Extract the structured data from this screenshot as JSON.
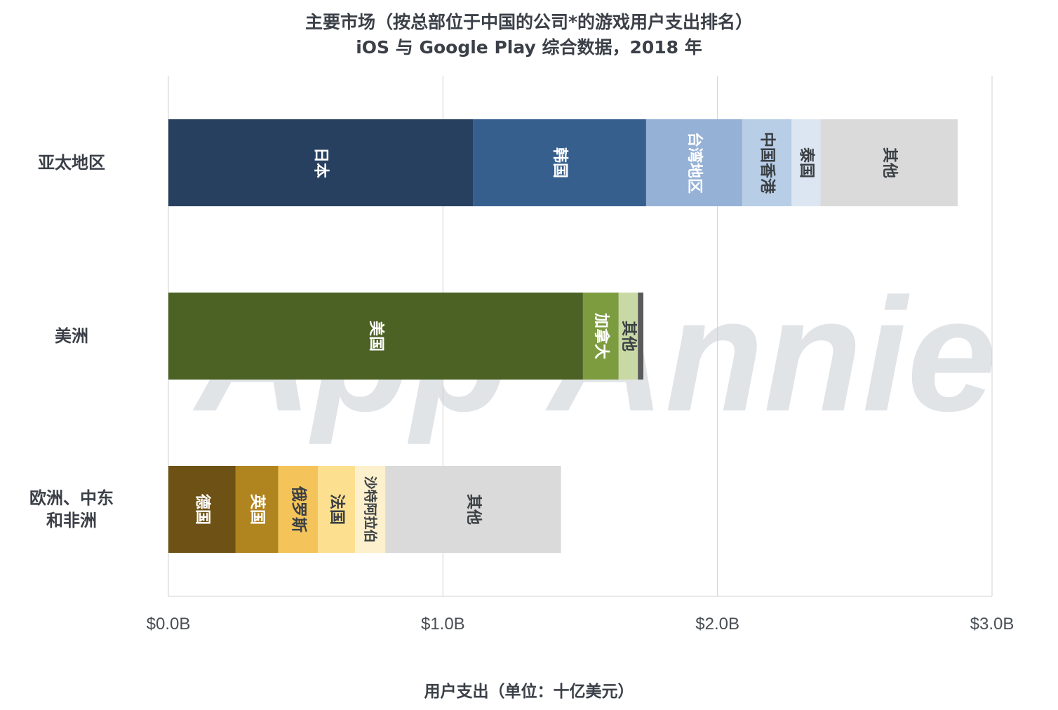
{
  "title": "主要市场（按总部位于中国的公司*的游戏用户支出排名）",
  "subtitle": "iOS 与 Google Play 综合数据，2018 年",
  "watermark": "App Annie",
  "chart_data": {
    "type": "bar",
    "orientation": "horizontal",
    "stacked": true,
    "title": "主要市场（按总部位于中国的公司*的游戏用户支出排名）",
    "subtitle": "iOS 与 Google Play 综合数据，2018 年",
    "xlabel": "用户支出（单位：十亿美元）",
    "ylabel": "",
    "xlim": [
      0,
      3.0
    ],
    "xticks": [
      {
        "value": 0,
        "label": "$0.0B"
      },
      {
        "value": 1,
        "label": "$1.0B"
      },
      {
        "value": 2,
        "label": "$2.0B"
      },
      {
        "value": 3,
        "label": "$3.0B"
      }
    ],
    "grid": "vertical",
    "categories": [
      {
        "label": [
          "亚太地区"
        ],
        "segments": [
          {
            "name": "日本",
            "value": 1.11,
            "color": "#27405f",
            "text_color": "#ffffff"
          },
          {
            "name": "韩国",
            "value": 0.63,
            "color": "#365f8e",
            "text_color": "#ffffff"
          },
          {
            "name": "台湾地区",
            "value": 0.35,
            "color": "#95b1d6",
            "text_color": "#ffffff"
          },
          {
            "name": "中国香港",
            "value": 0.18,
            "color": "#b8cde6",
            "text_color": "#3a3f44"
          },
          {
            "name": "泰国",
            "value": 0.105,
            "color": "#dce6f2",
            "text_color": "#3a3f44"
          },
          {
            "name": "其他",
            "value": 0.5,
            "color": "#dadada",
            "text_color": "#3a3f44"
          }
        ]
      },
      {
        "label": [
          "美洲"
        ],
        "segments": [
          {
            "name": "美国",
            "value": 1.51,
            "color": "#4c6124",
            "text_color": "#ffffff"
          },
          {
            "name": "加拿大",
            "value": 0.13,
            "color": "#7d9c3f",
            "text_color": "#ffffff"
          },
          {
            "name": "其他",
            "value": 0.07,
            "color": "#c9d9a5",
            "text_color": "#3a3f44"
          },
          {
            "name": "",
            "value": 0.02,
            "color": "#5a5a5a",
            "text_color": "#3a3f44"
          }
        ]
      },
      {
        "label": [
          "欧洲、中东",
          "和非洲"
        ],
        "segments": [
          {
            "name": "德国",
            "value": 0.245,
            "color": "#6e5114",
            "text_color": "#ffffff"
          },
          {
            "name": "英国",
            "value": 0.155,
            "color": "#b0841f",
            "text_color": "#ffffff"
          },
          {
            "name": "俄罗斯",
            "value": 0.145,
            "color": "#f4c45a",
            "text_color": "#3a3f44"
          },
          {
            "name": "法国",
            "value": 0.135,
            "color": "#fde08f",
            "text_color": "#3a3f44"
          },
          {
            "name": "沙特阿拉伯",
            "value": 0.11,
            "color": "#fdf0cc",
            "text_color": "#3a3f44"
          },
          {
            "name": "其他",
            "value": 0.64,
            "color": "#dadada",
            "text_color": "#3a3f44"
          }
        ]
      }
    ]
  }
}
